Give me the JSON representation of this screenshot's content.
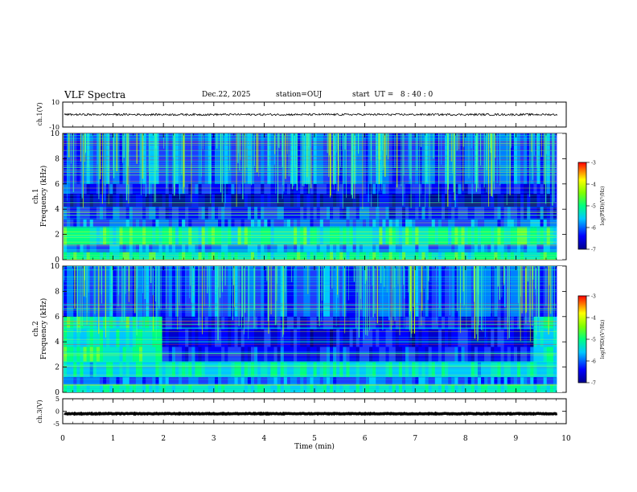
{
  "header": {
    "title": "VLF Spectra",
    "date": "Dec.22, 2025",
    "station": "station=OUJ",
    "start": "start  UT =   8 : 40 : 0"
  },
  "chart_data": [
    {
      "type": "line",
      "name": "ch1-waveform",
      "ylabel": "ch.1(V)",
      "ylim": [
        -10,
        10
      ],
      "yticks": [
        "10",
        "-10"
      ],
      "baseline": 0
    },
    {
      "type": "heatmap",
      "name": "ch1-spectrogram",
      "ylabel": "ch.1\nFrequency (kHz)",
      "ylim": [
        0,
        10
      ],
      "yticks": [
        "0",
        "2",
        "4",
        "6",
        "8",
        "10"
      ],
      "colorbar": {
        "label": "log(PSD)(V²/Hz)",
        "range": [
          -7,
          -3
        ],
        "ticks": [
          "-3",
          "-4",
          "-5",
          "-6",
          "-7"
        ]
      }
    },
    {
      "type": "heatmap",
      "name": "ch2-spectrogram",
      "ylabel": "ch.2\nFrequency (kHz)",
      "ylim": [
        0,
        10
      ],
      "yticks": [
        "0",
        "2",
        "4",
        "6",
        "8",
        "10"
      ],
      "colorbar": {
        "label": "log(PSD)(V²/Hz)",
        "range": [
          -7,
          -3
        ],
        "ticks": [
          "-3",
          "-4",
          "-5",
          "-6",
          "-7"
        ]
      }
    },
    {
      "type": "line",
      "name": "ch3-waveform",
      "ylabel": "ch.3(V)",
      "ylim": [
        -5,
        5
      ],
      "yticks": [
        "5",
        "0",
        "-5"
      ],
      "baseline": -1
    }
  ],
  "xaxis": {
    "label": "Time (min)",
    "xlim": [
      0,
      10
    ],
    "ticks": [
      "0",
      "1",
      "2",
      "3",
      "4",
      "5",
      "6",
      "7",
      "8",
      "9",
      "10"
    ]
  }
}
